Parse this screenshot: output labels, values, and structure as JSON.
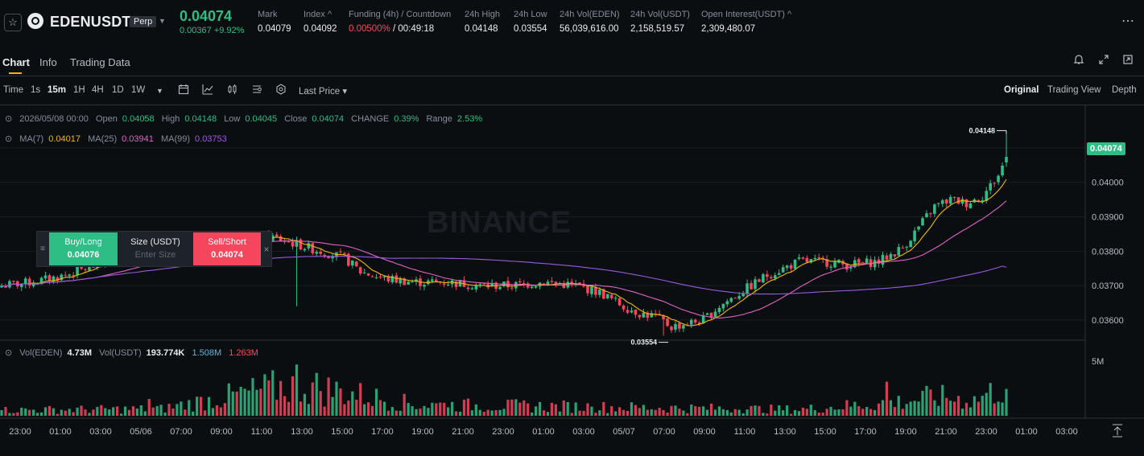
{
  "header": {
    "symbol": "EDENUSDT",
    "contract_type": "Perp",
    "last_price": "0.04074",
    "change": "0.00367 +9.92%",
    "stats": [
      {
        "label": "Mark",
        "value": "0.04079"
      },
      {
        "label": "Index ^",
        "value": "0.04092"
      },
      {
        "label": "Funding (4h) / Countdown",
        "value_rate": "0.00500%",
        "value_countdown": " / 00:49:18"
      },
      {
        "label": "24h High",
        "value": "0.04148"
      },
      {
        "label": "24h Low",
        "value": "0.03554"
      },
      {
        "label": "24h Vol(EDEN)",
        "value": "56,039,616.00"
      },
      {
        "label": "24h Vol(USDT)",
        "value": "2,158,519.57"
      },
      {
        "label": "Open Interest(USDT) ^",
        "value": "2,309,480.07"
      }
    ],
    "more": "⋯"
  },
  "tabs": [
    "Chart",
    "Info",
    "Trading Data"
  ],
  "toolbar": {
    "intervals": [
      "Time",
      "1s",
      "15m",
      "1H",
      "4H",
      "1D",
      "1W"
    ],
    "active_interval": "15m",
    "price_type": "Last Price ▾",
    "views": [
      "Original",
      "Trading View",
      "Depth"
    ],
    "active_view": "Original"
  },
  "ohlc": {
    "date": "2026/05/08 00:00",
    "open_label": "Open",
    "open": "0.04058",
    "high_label": "High",
    "high": "0.04148",
    "low_label": "Low",
    "low": "0.04045",
    "close_label": "Close",
    "close": "0.04074",
    "change_label": "CHANGE",
    "change": "0.39%",
    "range_label": "Range",
    "range": "2.53%"
  },
  "ma": {
    "ma7_label": "MA(7)",
    "ma7": "0.04017",
    "ma25_label": "MA(25)",
    "ma25": "0.03941",
    "ma99_label": "MA(99)",
    "ma99": "0.03753"
  },
  "vol": {
    "eden_label": "Vol(EDEN)",
    "eden": "4.73M",
    "usdt_label": "Vol(USDT)",
    "usdt": "193.774K",
    "ma1": "1.508M",
    "ma2": "1.263M"
  },
  "order_widget": {
    "buy_label": "Buy/Long",
    "buy_price": "0.04076",
    "size_label": "Size (USDT)",
    "size_placeholder": "Enter Size",
    "sell_label": "Sell/Short",
    "sell_price": "0.04074",
    "close": "×"
  },
  "watermark": "BINANCE",
  "price_marker": "0.04074",
  "colors": {
    "up": "#2ebd85",
    "down": "#f6465d",
    "ma7": "#f0b90b",
    "ma25": "#e063c4",
    "ma99": "#9b59e0",
    "accent": "#f0b90b"
  },
  "chart_data": {
    "type": "candlestick",
    "price_axis": {
      "ticks": [
        "0.04100",
        "0.04000",
        "0.03900",
        "0.03800",
        "0.03700",
        "0.03600"
      ],
      "range": [
        0.03525,
        0.04205
      ]
    },
    "volume_axis": {
      "ticks": [
        "5M"
      ]
    },
    "time_ticks": [
      "23:00",
      "01:00",
      "03:00",
      "05/06",
      "07:00",
      "09:00",
      "11:00",
      "13:00",
      "15:00",
      "17:00",
      "19:00",
      "21:00",
      "23:00",
      "01:00",
      "03:00",
      "05/07",
      "07:00",
      "09:00",
      "11:00",
      "13:00",
      "15:00",
      "17:00",
      "19:00",
      "21:00",
      "23:00",
      "01:00",
      "03:00"
    ],
    "annotations": [
      {
        "label": "0.04148",
        "price": 0.04148
      },
      {
        "label": "0.03554",
        "price": 0.03554
      }
    ],
    "close_anchors": [
      [
        0,
        0.037
      ],
      [
        8,
        0.0371
      ],
      [
        16,
        0.0373
      ],
      [
        24,
        0.0376
      ],
      [
        32,
        0.0379
      ],
      [
        40,
        0.038
      ],
      [
        48,
        0.0382
      ],
      [
        56,
        0.0383
      ],
      [
        68,
        0.0384
      ],
      [
        74,
        0.0382
      ],
      [
        80,
        0.038
      ],
      [
        86,
        0.0378
      ],
      [
        90,
        0.0374
      ],
      [
        96,
        0.0372
      ],
      [
        104,
        0.0371
      ],
      [
        112,
        0.0371
      ],
      [
        120,
        0.037
      ],
      [
        128,
        0.037
      ],
      [
        136,
        0.0371
      ],
      [
        144,
        0.037
      ],
      [
        150,
        0.0368
      ],
      [
        156,
        0.0364
      ],
      [
        160,
        0.0362
      ],
      [
        164,
        0.0361
      ],
      [
        168,
        0.0358
      ],
      [
        172,
        0.0359
      ],
      [
        176,
        0.036
      ],
      [
        180,
        0.0364
      ],
      [
        184,
        0.0367
      ],
      [
        188,
        0.037
      ],
      [
        192,
        0.0373
      ],
      [
        196,
        0.0375
      ],
      [
        200,
        0.0377
      ],
      [
        206,
        0.0377
      ],
      [
        212,
        0.0376
      ],
      [
        220,
        0.0377
      ],
      [
        226,
        0.0381
      ],
      [
        230,
        0.0387
      ],
      [
        234,
        0.0393
      ],
      [
        238,
        0.0395
      ],
      [
        242,
        0.0394
      ],
      [
        246,
        0.0396
      ],
      [
        250,
        0.0402
      ],
      [
        252,
        0.04074
      ]
    ],
    "volume_anchors": [
      [
        0,
        0.18
      ],
      [
        40,
        0.22
      ],
      [
        74,
        1.0
      ],
      [
        104,
        0.35
      ],
      [
        200,
        0.2
      ],
      [
        226,
        0.45
      ],
      [
        234,
        0.6
      ],
      [
        244,
        0.5
      ],
      [
        252,
        0.95
      ]
    ],
    "ma7_last": 0.04017,
    "ma25_last": 0.03941,
    "ma99_last": 0.03753
  }
}
